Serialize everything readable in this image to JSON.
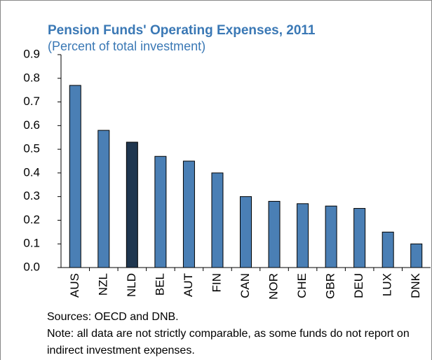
{
  "chart_data": {
    "type": "bar",
    "title": "Pension Funds' Operating Expenses, 2011",
    "subtitle": "(Percent of total investment)",
    "categories": [
      "AUS",
      "NZL",
      "NLD",
      "BEL",
      "AUT",
      "FIN",
      "CAN",
      "NOR",
      "CHE",
      "GBR",
      "DEU",
      "LUX",
      "DNK"
    ],
    "values": [
      0.77,
      0.58,
      0.53,
      0.47,
      0.45,
      0.4,
      0.3,
      0.28,
      0.27,
      0.26,
      0.25,
      0.15,
      0.1
    ],
    "colors": [
      "#4a7fb5",
      "#4a7fb5",
      "#1f364f",
      "#4a7fb5",
      "#4a7fb5",
      "#4a7fb5",
      "#4a7fb5",
      "#4a7fb5",
      "#4a7fb5",
      "#4a7fb5",
      "#4a7fb5",
      "#4a7fb5",
      "#4a7fb5"
    ],
    "ylim": [
      0,
      0.9
    ],
    "yticks": [
      {
        "value": 0,
        "label": "0.0"
      },
      0.1,
      0.2,
      0.3,
      0.4,
      0.5,
      0.6,
      0.7,
      0.8,
      0.9
    ],
    "grid": false,
    "sources": "Sources: OECD and DNB.",
    "note": "Note: all data are not strictly comparable, as some funds do not report on indirect investment expenses."
  }
}
